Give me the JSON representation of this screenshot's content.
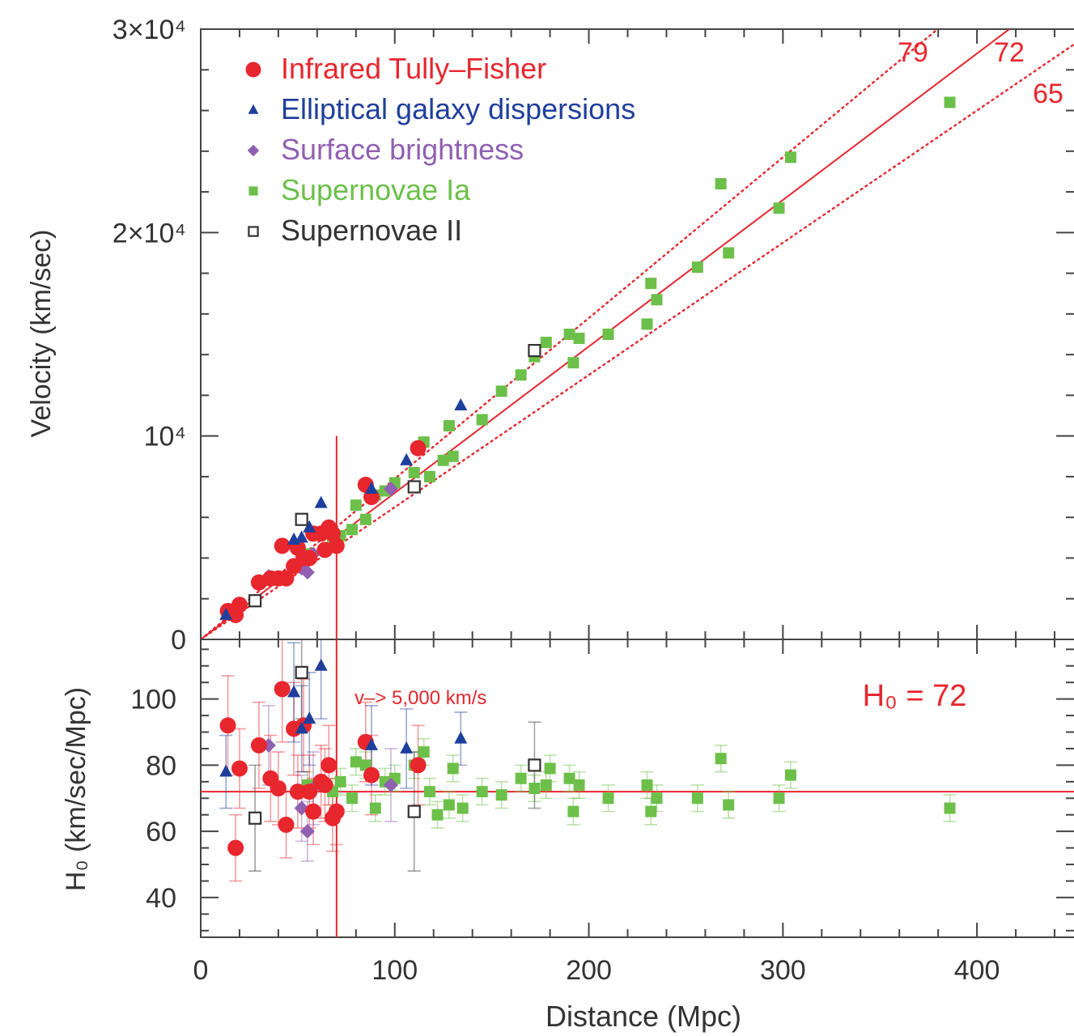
{
  "colors": {
    "red": "#e8262e",
    "blue": "#1f3f9c",
    "purple": "#9160b2",
    "green": "#6cc04a",
    "black": "#333333",
    "fit": "#e8262e"
  },
  "chart_data": [
    {
      "type": "scatter",
      "panel": "top",
      "ylabel": "Velocity (km/sec)",
      "xlim": [
        0,
        450
      ],
      "ylim": [
        0,
        30000
      ],
      "ytick_labels": [
        "0",
        "10⁴",
        "2×10⁴",
        "3×10⁴"
      ],
      "ytick_values": [
        0,
        10000,
        20000,
        30000
      ],
      "legend": [
        {
          "name": "Infrared Tully–Fisher",
          "marker": "circle",
          "color": "#e8262e"
        },
        {
          "name": "Elliptical galaxy dispersions",
          "marker": "triangle",
          "color": "#1f3f9c"
        },
        {
          "name": "Surface brightness",
          "marker": "diamond",
          "color": "#9160b2"
        },
        {
          "name": "Supernovae Ia",
          "marker": "square",
          "color": "#6cc04a"
        },
        {
          "name": "Supernovae II",
          "marker": "open-square",
          "color": "#333333"
        }
      ],
      "lines": [
        {
          "label": "79",
          "slope": 79,
          "style": "dotted"
        },
        {
          "label": "72",
          "slope": 72,
          "style": "solid"
        },
        {
          "label": "65",
          "slope": 65,
          "style": "dotted"
        }
      ],
      "vline_x": 70,
      "series": [
        {
          "name": "Infrared Tully–Fisher",
          "points": [
            [
              14,
              1400
            ],
            [
              18,
              1200
            ],
            [
              20,
              1700
            ],
            [
              30,
              2800
            ],
            [
              36,
              3000
            ],
            [
              40,
              3000
            ],
            [
              42,
              4600
            ],
            [
              44,
              3000
            ],
            [
              48,
              3600
            ],
            [
              50,
              4500
            ],
            [
              53,
              4000
            ],
            [
              56,
              4000
            ],
            [
              58,
              5200
            ],
            [
              62,
              5200
            ],
            [
              64,
              4400
            ],
            [
              66,
              5500
            ],
            [
              68,
              5200
            ],
            [
              70,
              4600
            ],
            [
              85,
              7600
            ],
            [
              88,
              7000
            ],
            [
              112,
              9400
            ]
          ]
        },
        {
          "name": "Elliptical galaxy dispersions",
          "points": [
            [
              13,
              1200
            ],
            [
              48,
              4900
            ],
            [
              52,
              5000
            ],
            [
              56,
              5500
            ],
            [
              62,
              6700
            ],
            [
              88,
              7400
            ],
            [
              106,
              8800
            ],
            [
              134,
              11500
            ]
          ]
        },
        {
          "name": "Surface brightness",
          "points": [
            [
              35,
              3100
            ],
            [
              52,
              3500
            ],
            [
              55,
              3300
            ],
            [
              58,
              4200
            ],
            [
              98,
              7400
            ]
          ]
        },
        {
          "name": "Supernovae Ia",
          "points": [
            [
              55,
              4200
            ],
            [
              68,
              4900
            ],
            [
              72,
              5100
            ],
            [
              78,
              5400
            ],
            [
              80,
              6600
            ],
            [
              85,
              5900
            ],
            [
              90,
              7100
            ],
            [
              95,
              7300
            ],
            [
              100,
              7700
            ],
            [
              110,
              8200
            ],
            [
              115,
              9700
            ],
            [
              118,
              8000
            ],
            [
              125,
              8800
            ],
            [
              128,
              10500
            ],
            [
              130,
              9000
            ],
            [
              145,
              10800
            ],
            [
              155,
              12200
            ],
            [
              165,
              13000
            ],
            [
              172,
              13900
            ],
            [
              178,
              14600
            ],
            [
              190,
              15000
            ],
            [
              192,
              13600
            ],
            [
              195,
              14800
            ],
            [
              210,
              15000
            ],
            [
              230,
              15500
            ],
            [
              232,
              17500
            ],
            [
              235,
              16700
            ],
            [
              256,
              18300
            ],
            [
              268,
              22400
            ],
            [
              272,
              19000
            ],
            [
              298,
              21200
            ],
            [
              304,
              23700
            ],
            [
              386,
              26400
            ]
          ]
        },
        {
          "name": "Supernovae II",
          "points": [
            [
              28,
              1900
            ],
            [
              52,
              5900
            ],
            [
              110,
              7500
            ],
            [
              172,
              14200
            ]
          ]
        }
      ]
    },
    {
      "type": "scatter",
      "panel": "bottom",
      "xlabel": "Distance (Mpc)",
      "ylabel": "H₀ (km/sec/Mpc)",
      "xlim": [
        0,
        450
      ],
      "ylim": [
        28,
        118
      ],
      "xtick_labels": [
        "0",
        "100",
        "200",
        "300",
        "400"
      ],
      "xtick_values": [
        0,
        100,
        200,
        300,
        400
      ],
      "ytick_labels": [
        "40",
        "60",
        "80",
        "100"
      ],
      "ytick_values": [
        40,
        60,
        80,
        100
      ],
      "annotations": [
        "v–> 5,000 km/s",
        "H₀ = 72"
      ],
      "hline_y": 72,
      "vline_x": 70,
      "series": [
        {
          "name": "Infrared Tully–Fisher",
          "points": [
            [
              14,
              92,
              15
            ],
            [
              18,
              55,
              10
            ],
            [
              20,
              79,
              12
            ],
            [
              30,
              86,
              13
            ],
            [
              36,
              76,
              13
            ],
            [
              40,
              73,
              11
            ],
            [
              42,
              103,
              16
            ],
            [
              44,
              62,
              10
            ],
            [
              48,
              91,
              14
            ],
            [
              50,
              72,
              11
            ],
            [
              53,
              92,
              14
            ],
            [
              56,
              72,
              11
            ],
            [
              58,
              66,
              10
            ],
            [
              62,
              75,
              11
            ],
            [
              64,
              74,
              11
            ],
            [
              66,
              80,
              12
            ],
            [
              68,
              64,
              10
            ],
            [
              70,
              66,
              10
            ],
            [
              85,
              87,
              12
            ],
            [
              88,
              77,
              12
            ],
            [
              112,
              80,
              12
            ]
          ]
        },
        {
          "name": "Elliptical galaxy dispersions",
          "points": [
            [
              13,
              78,
              11
            ],
            [
              48,
              102,
              15
            ],
            [
              52,
              91,
              13
            ],
            [
              56,
              94,
              14
            ],
            [
              62,
              110,
              16
            ],
            [
              88,
              86,
              12
            ],
            [
              106,
              85,
              12
            ],
            [
              134,
              88,
              8
            ]
          ]
        },
        {
          "name": "Surface brightness",
          "points": [
            [
              35,
              86,
              12
            ],
            [
              52,
              67,
              10
            ],
            [
              55,
              60,
              9
            ],
            [
              58,
              73,
              11
            ],
            [
              98,
              74,
              11
            ]
          ]
        },
        {
          "name": "Supernovae Ia",
          "points": [
            [
              55,
              74,
              4
            ],
            [
              68,
              72,
              4
            ],
            [
              72,
              75,
              4
            ],
            [
              78,
              70,
              4
            ],
            [
              80,
              81,
              4
            ],
            [
              85,
              80,
              4
            ],
            [
              90,
              67,
              4
            ],
            [
              95,
              75,
              4
            ],
            [
              100,
              76,
              4
            ],
            [
              110,
              80,
              4
            ],
            [
              115,
              84,
              4
            ],
            [
              118,
              72,
              4
            ],
            [
              122,
              65,
              4
            ],
            [
              128,
              68,
              4
            ],
            [
              130,
              79,
              4
            ],
            [
              135,
              67,
              4
            ],
            [
              145,
              72,
              4
            ],
            [
              155,
              71,
              4
            ],
            [
              165,
              76,
              4
            ],
            [
              172,
              73,
              4
            ],
            [
              178,
              74,
              4
            ],
            [
              180,
              79,
              4
            ],
            [
              190,
              76,
              4
            ],
            [
              192,
              66,
              4
            ],
            [
              195,
              74,
              4
            ],
            [
              210,
              70,
              4
            ],
            [
              230,
              74,
              4
            ],
            [
              232,
              66,
              4
            ],
            [
              235,
              70,
              4
            ],
            [
              256,
              70,
              4
            ],
            [
              268,
              82,
              4
            ],
            [
              272,
              68,
              4
            ],
            [
              298,
              70,
              4
            ],
            [
              304,
              77,
              4
            ],
            [
              386,
              67,
              4
            ]
          ]
        },
        {
          "name": "Supernovae II",
          "points": [
            [
              28,
              64,
              16
            ],
            [
              52,
              108,
              14
            ],
            [
              110,
              66,
              18
            ],
            [
              172,
              80,
              13
            ]
          ]
        }
      ]
    }
  ]
}
